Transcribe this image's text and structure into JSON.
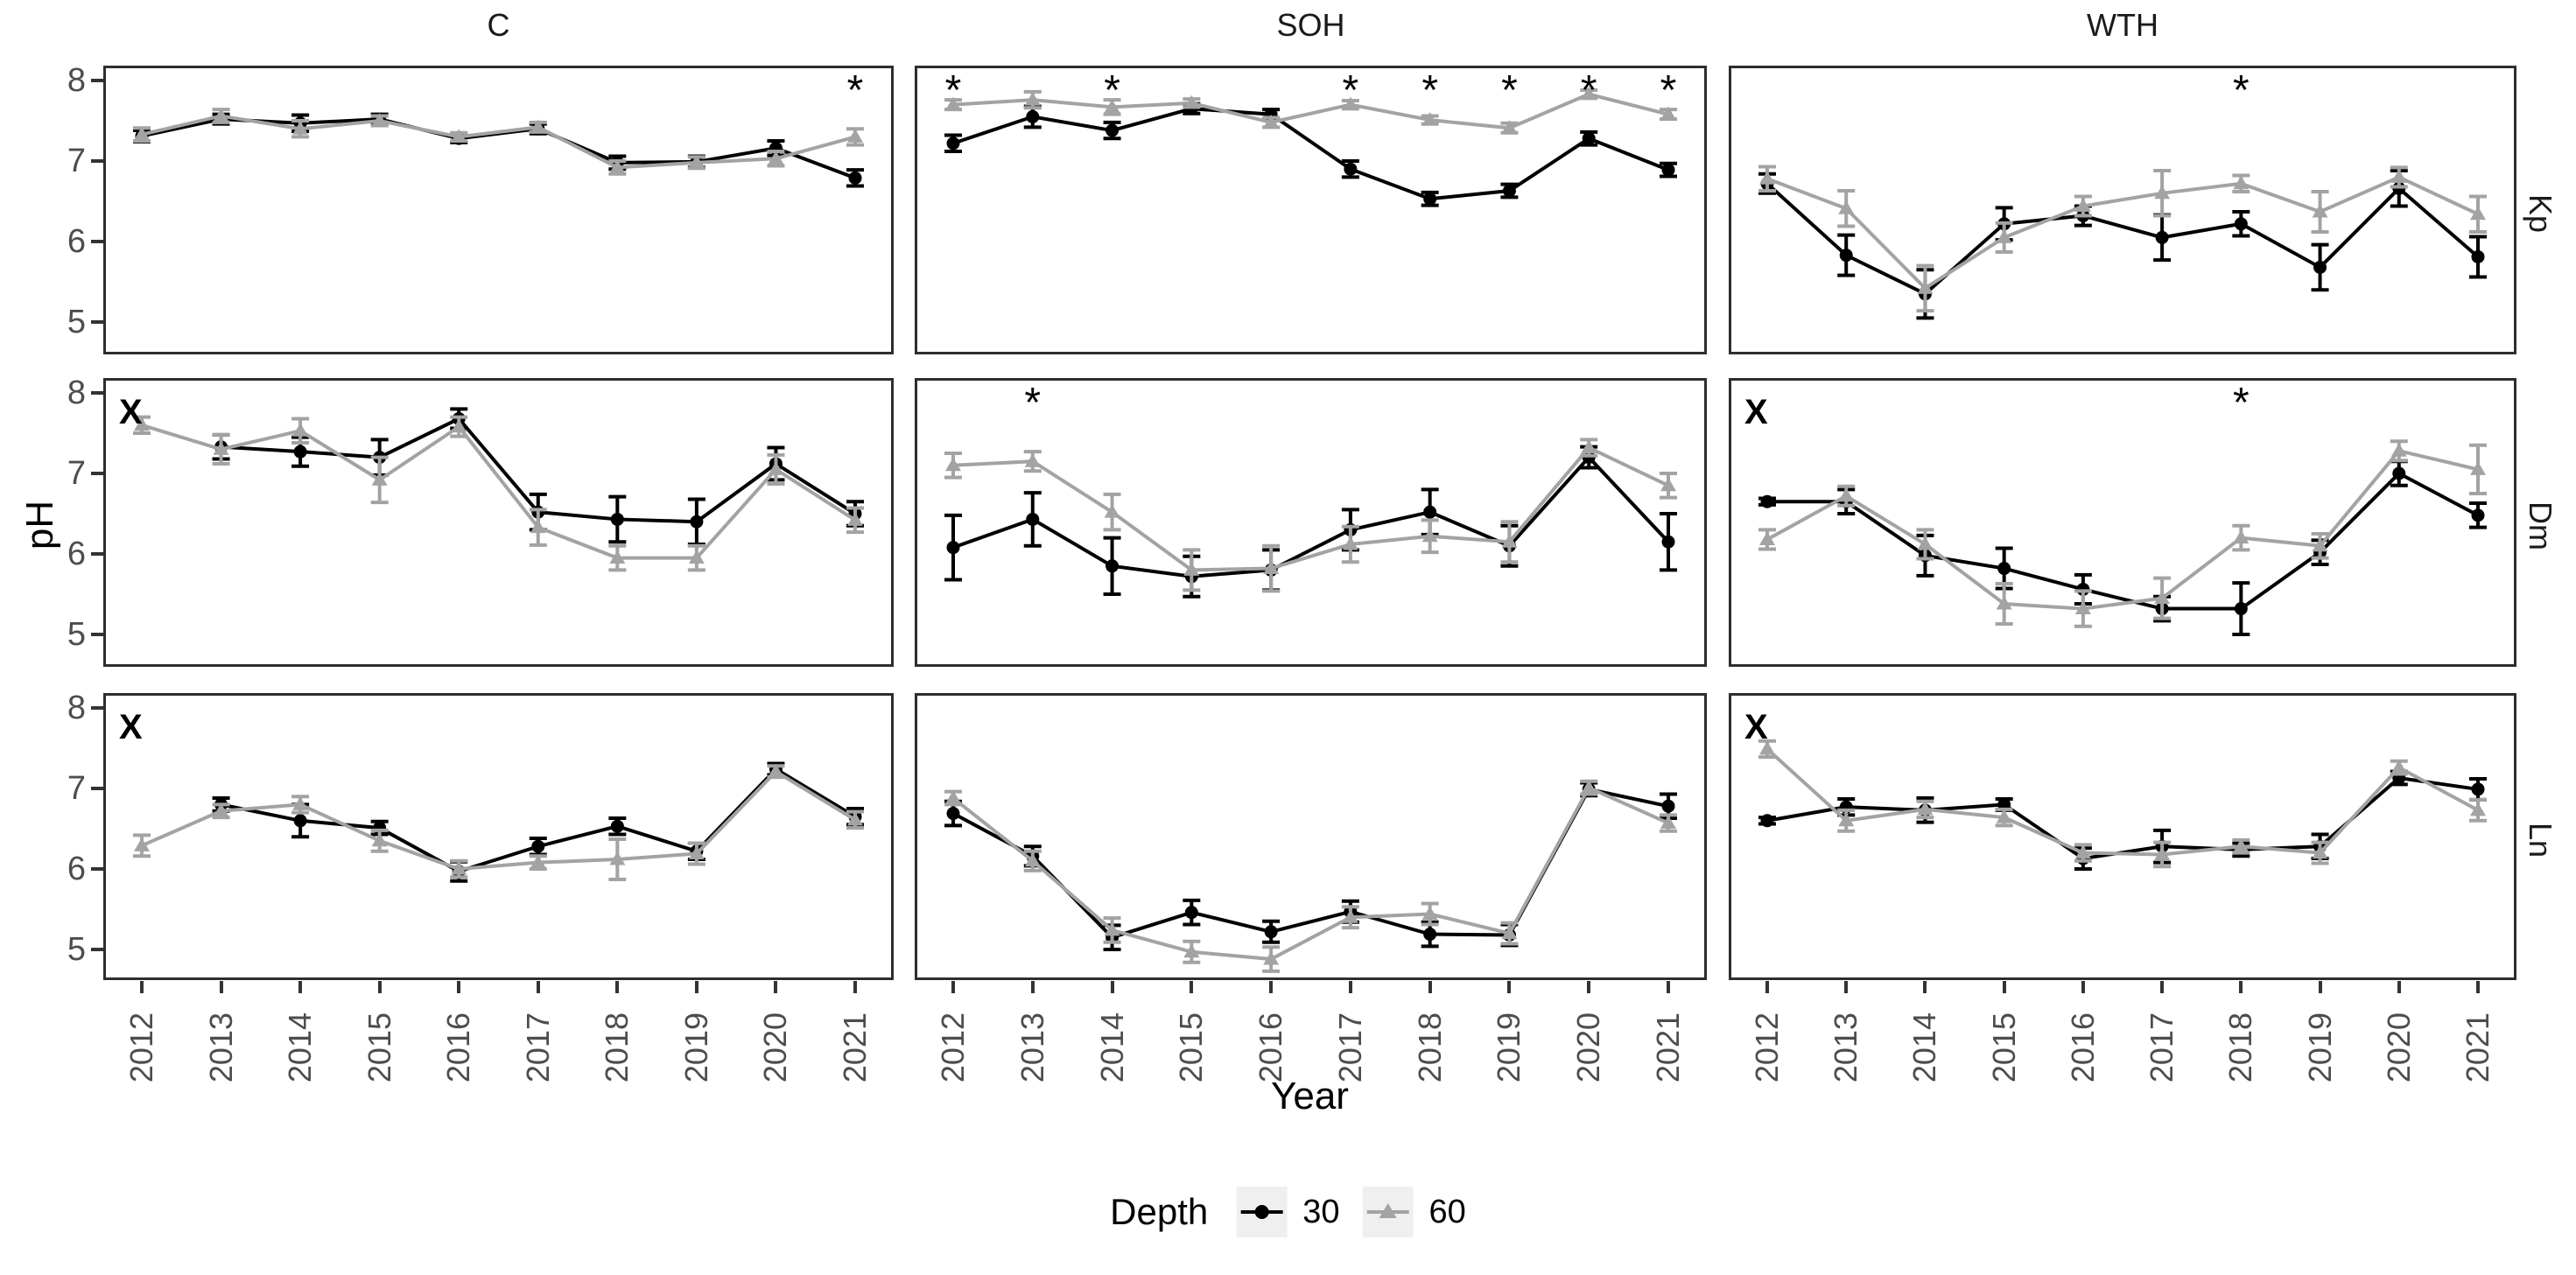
{
  "chart_data": {
    "type": "line",
    "xlabel": "Year",
    "ylabel": "pH",
    "x": [
      2012,
      2013,
      2014,
      2015,
      2016,
      2017,
      2018,
      2019,
      2020,
      2021
    ],
    "yticks": [
      8,
      7,
      6,
      5
    ],
    "ylim": [
      4.6,
      8.15
    ],
    "grid": "off",
    "legend_position": "bottom",
    "col_facets": [
      "C",
      "SOH",
      "WTH"
    ],
    "row_facets": [
      "Kp",
      "Dm",
      "Ln"
    ],
    "annotation_symbols": {
      "star": "*",
      "missing": "X"
    },
    "series_meta": {
      "name": "Depth",
      "levels": [
        {
          "label": "30",
          "color": "#000000",
          "marker": "circle"
        },
        {
          "label": "60",
          "color": "#a3a3a3",
          "marker": "triangle"
        }
      ]
    },
    "panels": [
      {
        "col": "C",
        "row": "Kp",
        "x_mark": false,
        "stars": [
          2021
        ],
        "depth30": {
          "values": [
            7.31,
            7.52,
            7.47,
            7.52,
            7.28,
            7.4,
            6.98,
            6.99,
            7.16,
            6.79
          ],
          "err": [
            0.07,
            0.06,
            0.1,
            0.06,
            0.05,
            0.06,
            0.08,
            0.07,
            0.09,
            0.1
          ]
        },
        "depth60": {
          "values": [
            7.33,
            7.56,
            7.4,
            7.5,
            7.3,
            7.42,
            6.92,
            6.98,
            7.03,
            7.3
          ],
          "err": [
            0.08,
            0.08,
            0.1,
            0.06,
            0.05,
            0.06,
            0.08,
            0.07,
            0.09,
            0.1
          ]
        }
      },
      {
        "col": "SOH",
        "row": "Kp",
        "x_mark": false,
        "stars": [
          2012,
          2014,
          2017,
          2018,
          2019,
          2020,
          2021
        ],
        "depth30": {
          "values": [
            7.22,
            7.55,
            7.38,
            7.65,
            7.58,
            6.9,
            6.53,
            6.63,
            7.28,
            6.89
          ],
          "err": [
            0.1,
            0.13,
            0.1,
            0.06,
            0.06,
            0.1,
            0.08,
            0.08,
            0.08,
            0.08
          ]
        },
        "depth60": {
          "values": [
            7.7,
            7.76,
            7.67,
            7.72,
            7.48,
            7.7,
            7.51,
            7.41,
            7.83,
            7.58
          ],
          "err": [
            0.06,
            0.1,
            0.09,
            0.05,
            0.06,
            0.05,
            0.05,
            0.06,
            0.05,
            0.06
          ]
        }
      },
      {
        "col": "WTH",
        "row": "Kp",
        "x_mark": false,
        "stars": [
          2018
        ],
        "depth30": {
          "values": [
            6.72,
            5.83,
            5.35,
            6.22,
            6.32,
            6.05,
            6.22,
            5.68,
            6.66,
            5.81
          ],
          "err": [
            0.12,
            0.25,
            0.3,
            0.2,
            0.12,
            0.28,
            0.15,
            0.28,
            0.22,
            0.25
          ]
        },
        "depth60": {
          "values": [
            6.78,
            6.41,
            5.42,
            6.05,
            6.44,
            6.6,
            6.72,
            6.37,
            6.8,
            6.34
          ],
          "err": [
            0.15,
            0.22,
            0.28,
            0.18,
            0.12,
            0.28,
            0.1,
            0.25,
            0.12,
            0.22
          ]
        }
      },
      {
        "col": "C",
        "row": "Dm",
        "x_mark": true,
        "stars": [],
        "depth30": {
          "values": [
            null,
            7.33,
            7.27,
            7.2,
            7.68,
            6.52,
            6.43,
            6.4,
            7.12,
            6.5
          ],
          "err": [
            0,
            0.15,
            0.18,
            0.22,
            0.12,
            0.22,
            0.28,
            0.28,
            0.2,
            0.15
          ]
        },
        "depth60": {
          "values": [
            7.6,
            7.3,
            7.53,
            6.92,
            7.58,
            6.33,
            5.95,
            5.95,
            7.05,
            6.42
          ],
          "err": [
            0.1,
            0.18,
            0.15,
            0.28,
            0.12,
            0.22,
            0.15,
            0.15,
            0.18,
            0.15
          ]
        }
      },
      {
        "col": "SOH",
        "row": "Dm",
        "x_mark": false,
        "stars": [
          2013
        ],
        "depth30": {
          "values": [
            6.08,
            6.43,
            5.85,
            5.72,
            5.8,
            6.3,
            6.52,
            6.1,
            7.2,
            6.15
          ],
          "err": [
            0.4,
            0.33,
            0.35,
            0.25,
            0.25,
            0.25,
            0.28,
            0.25,
            0.13,
            0.35
          ]
        },
        "depth60": {
          "values": [
            7.1,
            7.15,
            6.52,
            5.8,
            5.82,
            6.12,
            6.22,
            6.15,
            7.32,
            6.85
          ],
          "err": [
            0.15,
            0.12,
            0.22,
            0.25,
            0.28,
            0.22,
            0.2,
            0.25,
            0.1,
            0.15
          ]
        }
      },
      {
        "col": "WTH",
        "row": "Dm",
        "x_mark": true,
        "stars": [
          2018
        ],
        "depth30": {
          "values": [
            6.65,
            6.65,
            5.98,
            5.82,
            5.56,
            5.32,
            5.32,
            6.02,
            7.0,
            6.48
          ],
          "err": [
            0.04,
            0.15,
            0.25,
            0.25,
            0.18,
            0.15,
            0.32,
            0.15,
            0.15,
            0.15
          ]
        },
        "depth60": {
          "values": [
            6.18,
            6.72,
            6.12,
            5.38,
            5.32,
            5.45,
            6.2,
            6.1,
            7.28,
            7.05
          ],
          "err": [
            0.12,
            0.12,
            0.18,
            0.25,
            0.22,
            0.25,
            0.15,
            0.15,
            0.12,
            0.3
          ]
        }
      },
      {
        "col": "C",
        "row": "Ln",
        "x_mark": true,
        "stars": [],
        "depth30": {
          "values": [
            null,
            6.8,
            6.6,
            6.51,
            5.97,
            6.28,
            6.53,
            6.22,
            7.24,
            6.65
          ],
          "err": [
            0,
            0.08,
            0.2,
            0.08,
            0.12,
            0.1,
            0.1,
            0.1,
            0.07,
            0.1
          ]
        },
        "depth60": {
          "values": [
            6.29,
            6.72,
            6.8,
            6.35,
            6.0,
            6.08,
            6.12,
            6.19,
            7.21,
            6.61
          ],
          "err": [
            0.13,
            0.08,
            0.1,
            0.13,
            0.1,
            0.08,
            0.25,
            0.13,
            0.07,
            0.1
          ]
        }
      },
      {
        "col": "SOH",
        "row": "Ln",
        "x_mark": false,
        "stars": [],
        "depth30": {
          "values": [
            6.69,
            6.16,
            5.15,
            5.46,
            5.22,
            5.47,
            5.19,
            5.18,
            6.99,
            6.78
          ],
          "err": [
            0.15,
            0.12,
            0.15,
            0.15,
            0.13,
            0.13,
            0.15,
            0.13,
            0.08,
            0.15
          ]
        },
        "depth60": {
          "values": [
            6.88,
            6.1,
            5.24,
            4.97,
            4.88,
            5.4,
            5.44,
            5.2,
            7.01,
            6.57
          ],
          "err": [
            0.08,
            0.12,
            0.15,
            0.13,
            0.15,
            0.13,
            0.13,
            0.13,
            0.08,
            0.1
          ]
        }
      },
      {
        "col": "WTH",
        "row": "Ln",
        "x_mark": true,
        "stars": [],
        "depth30": {
          "values": [
            6.6,
            6.77,
            6.73,
            6.8,
            6.13,
            6.28,
            6.24,
            6.28,
            7.13,
            6.99
          ],
          "err": [
            0.04,
            0.1,
            0.15,
            0.07,
            0.13,
            0.2,
            0.08,
            0.15,
            0.08,
            0.13
          ]
        },
        "depth60": {
          "values": [
            7.49,
            6.6,
            6.74,
            6.64,
            6.2,
            6.18,
            6.28,
            6.2,
            7.26,
            6.73
          ],
          "err": [
            0.1,
            0.13,
            0.1,
            0.1,
            0.1,
            0.15,
            0.08,
            0.13,
            0.08,
            0.13
          ]
        }
      }
    ],
    "colors": {
      "depth30": "#000000",
      "depth60": "#a3a3a3",
      "tick_text": "#4d4d4d",
      "panel_border": "#2e2e2e",
      "legend_key_bg": "#efefef",
      "background": "#ffffff"
    }
  }
}
